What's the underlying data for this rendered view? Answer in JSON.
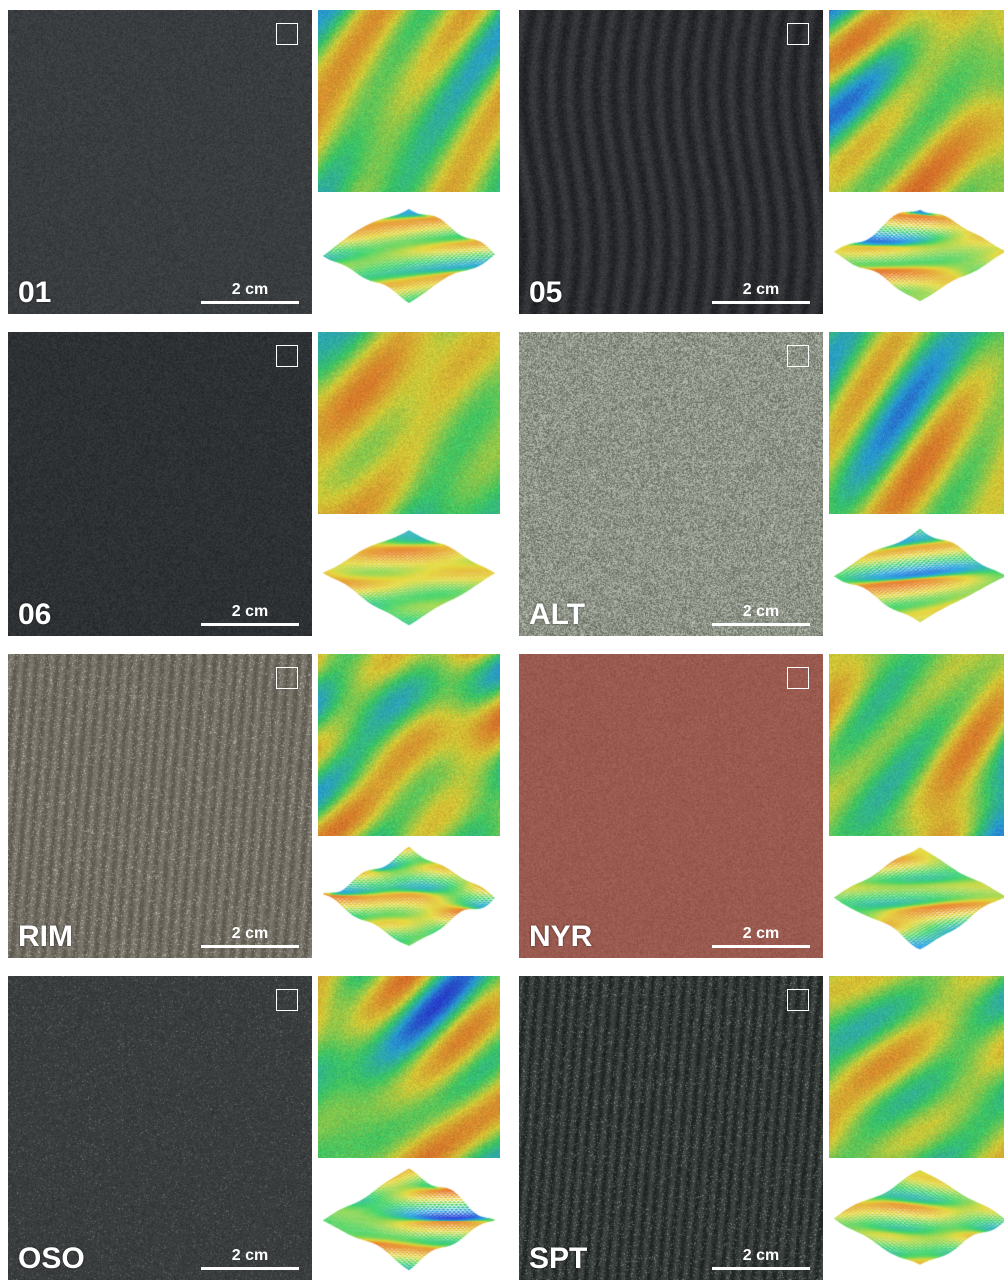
{
  "scale_label": "2 cm",
  "samples": [
    {
      "label": "01",
      "photo_color": "#3a3d40",
      "texture": "smooth"
    },
    {
      "label": "05",
      "photo_color": "#2c2e31",
      "texture": "striped"
    },
    {
      "label": "06",
      "photo_color": "#2d3134",
      "texture": "smooth"
    },
    {
      "label": "ALT",
      "photo_color": "#8e9488",
      "texture": "grainy"
    },
    {
      "label": "RIM",
      "photo_color": "#6e6a60",
      "texture": "streaky"
    },
    {
      "label": "NYR",
      "photo_color": "#9a5a50",
      "texture": "smooth"
    },
    {
      "label": "OSO",
      "photo_color": "#3a3d3e",
      "texture": "flecked"
    },
    {
      "label": "SPT",
      "photo_color": "#2f3532",
      "texture": "streaky"
    }
  ],
  "colormap": [
    "#2a2fd8",
    "#2aa6e0",
    "#3fd46a",
    "#e3d93a",
    "#e8862e",
    "#d83a2a"
  ]
}
